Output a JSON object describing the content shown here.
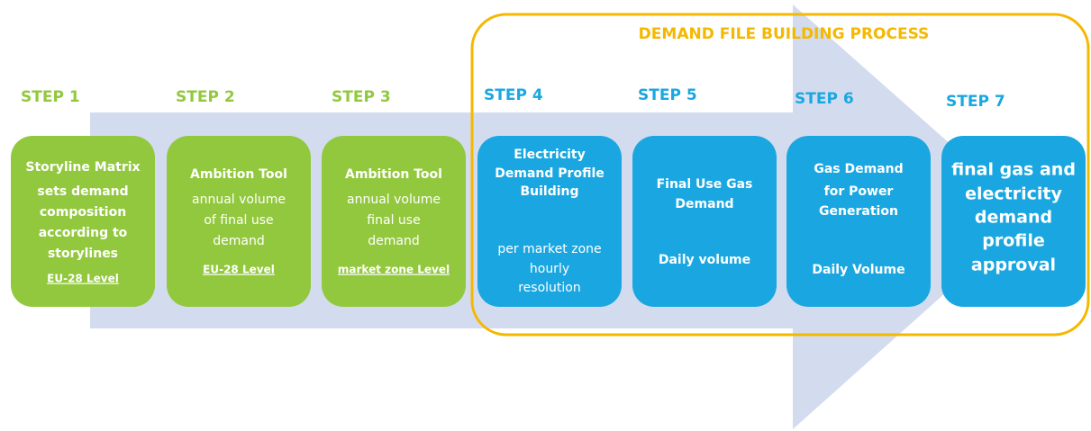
{
  "title": "DEMAND FILE BUILDING PROCESS",
  "steps": [
    {
      "label": "STEP 1",
      "lines": [
        "Storyline Matrix",
        "sets demand",
        "composition",
        "according to",
        "storylines",
        "EU-28 Level"
      ]
    },
    {
      "label": "STEP 2",
      "lines": [
        "Ambition Tool",
        "annual volume",
        "of final use",
        "demand",
        "EU-28 Level"
      ]
    },
    {
      "label": "STEP 3",
      "lines": [
        "Ambition Tool",
        "annual volume",
        "final use",
        "demand",
        "market zone Level"
      ]
    },
    {
      "label": "STEP 4",
      "lines": [
        "Electricity",
        "Demand Profile",
        "Building",
        "per market zone",
        "hourly",
        "resolution"
      ]
    },
    {
      "label": "STEP 5",
      "lines": [
        "Final Use Gas",
        "Demand",
        "Daily volume"
      ]
    },
    {
      "label": "STEP 6",
      "lines": [
        "Gas Demand",
        "for Power",
        "Generation",
        "Daily Volume"
      ]
    },
    {
      "label": "STEP 7",
      "lines": [
        "final gas and",
        "electricity",
        "demand",
        "profile",
        "approval"
      ]
    }
  ]
}
